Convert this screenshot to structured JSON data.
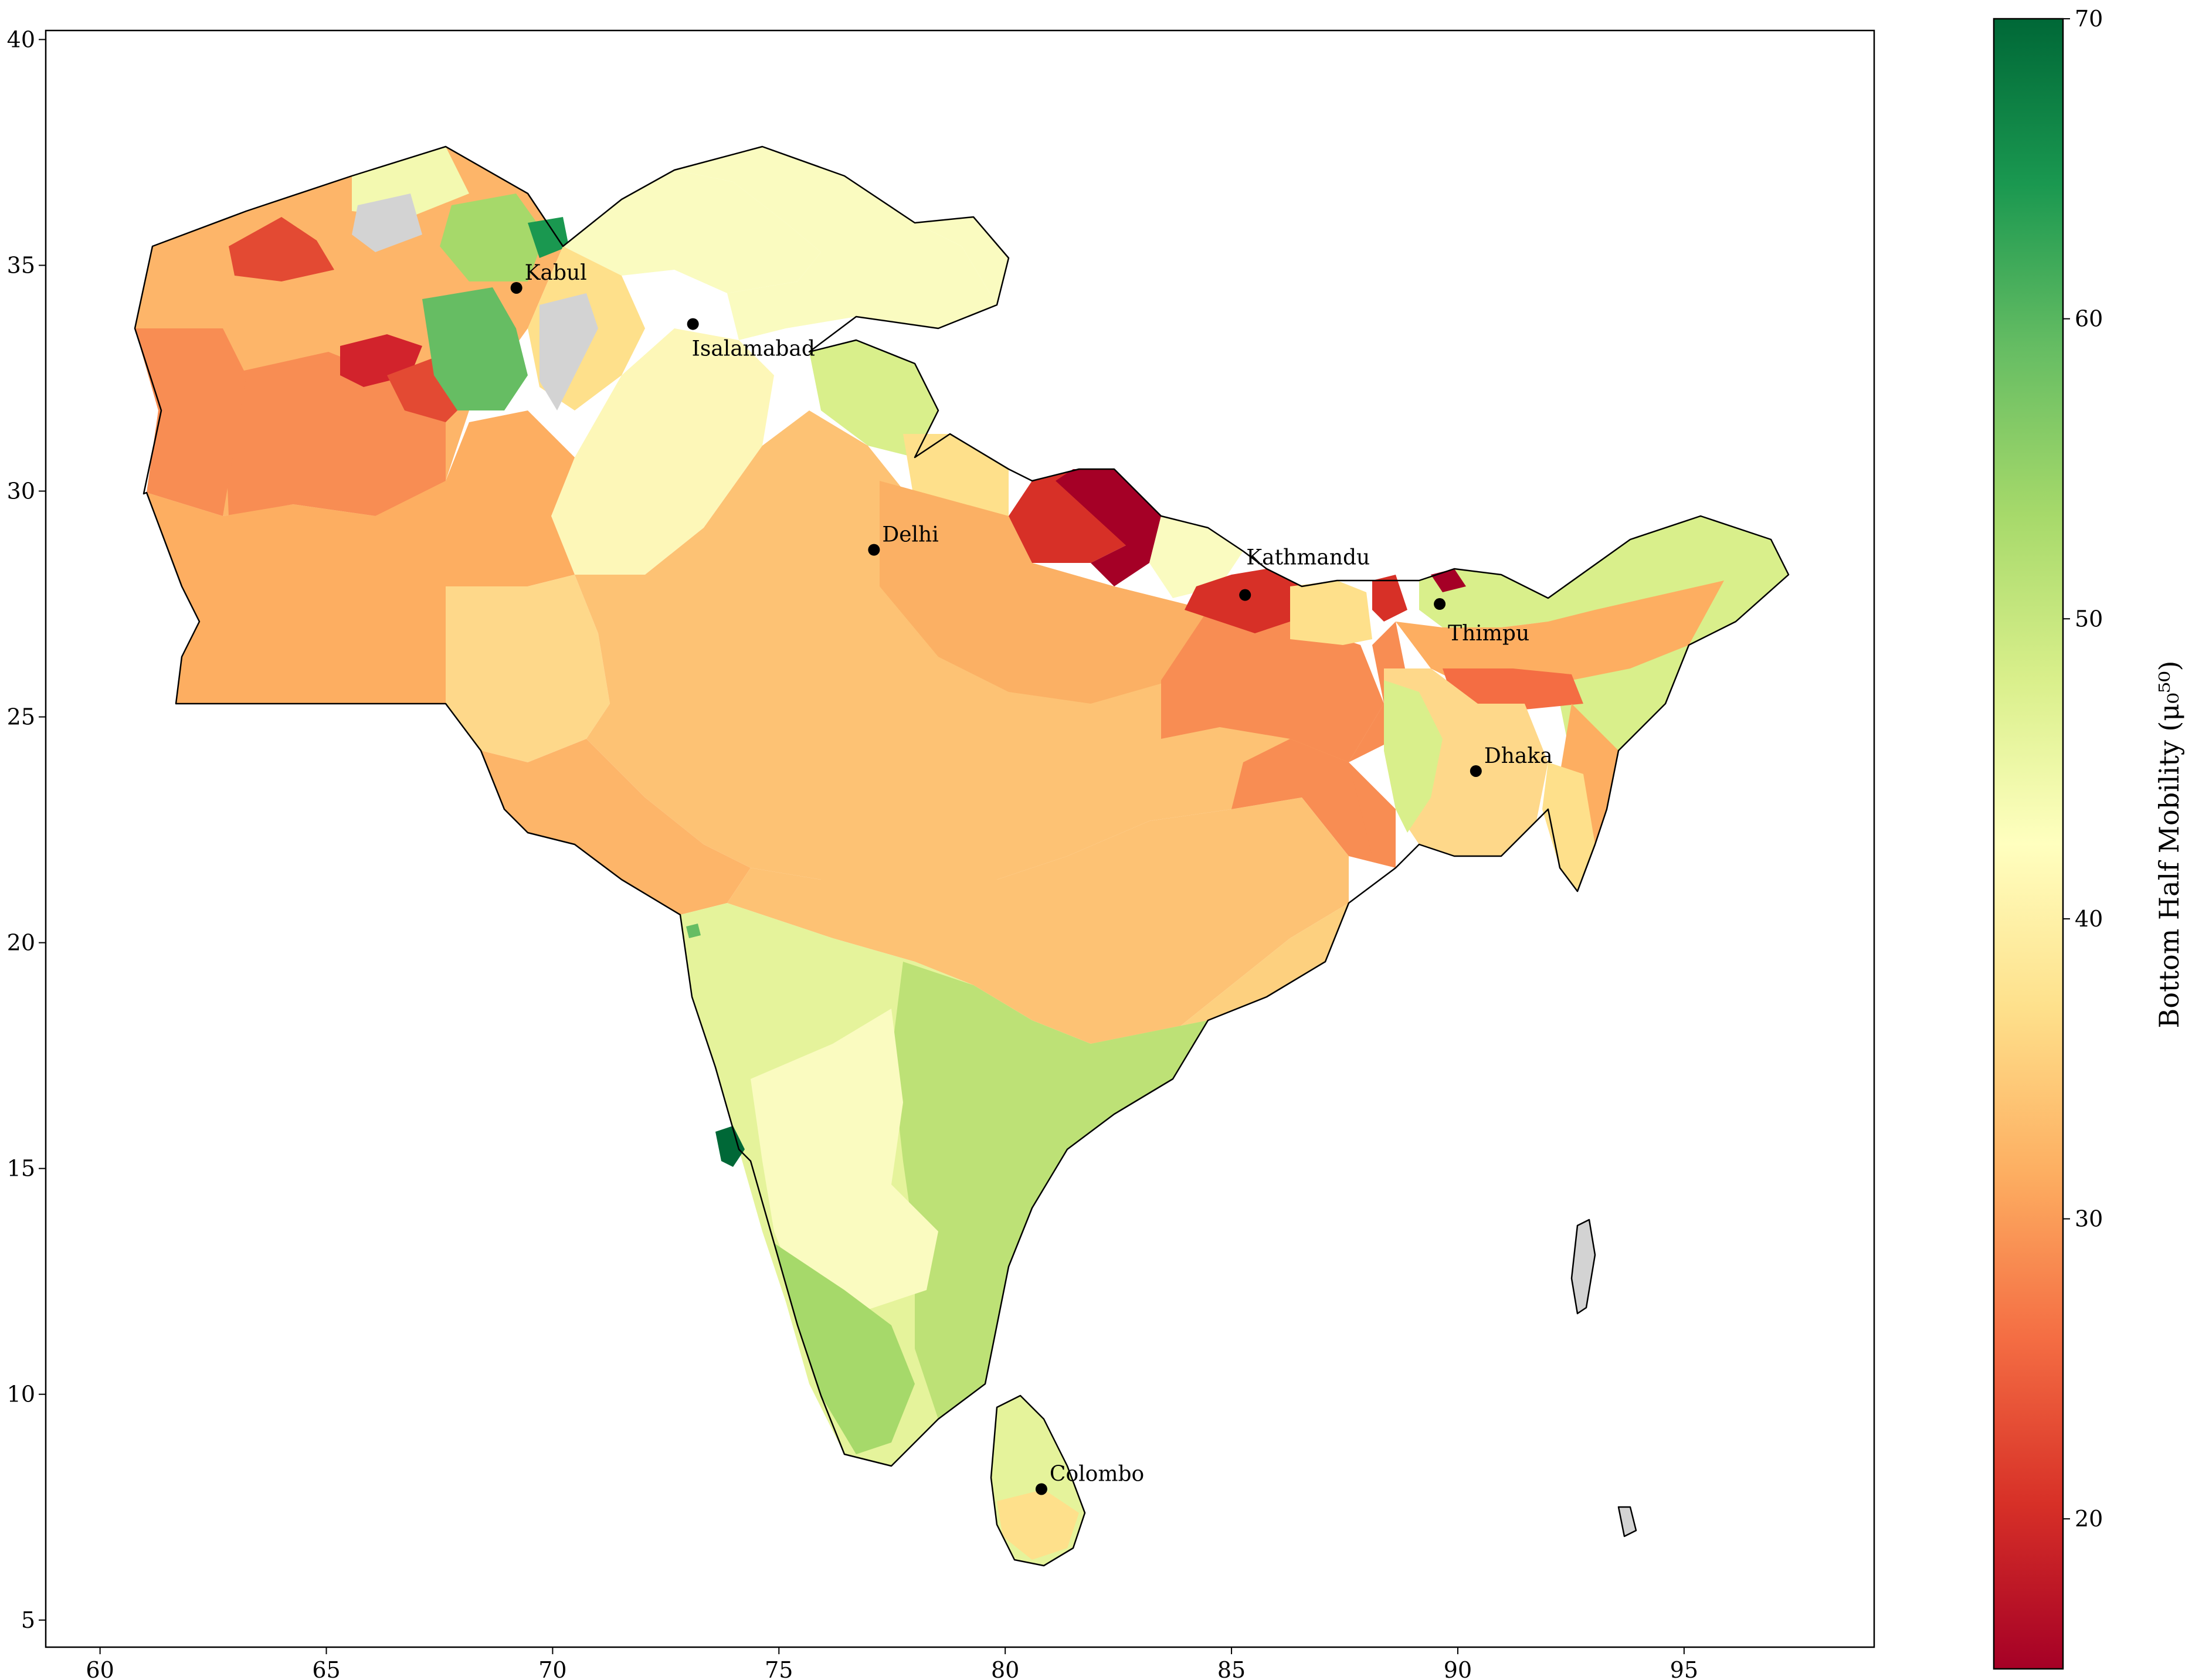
{
  "chart_data": {
    "type": "choropleth",
    "xlim": [
      58.8,
      99.2
    ],
    "ylim": [
      4.4,
      40.2
    ],
    "xticks": [
      60,
      65,
      70,
      75,
      80,
      85,
      90,
      95
    ],
    "yticks": [
      5,
      10,
      15,
      20,
      25,
      30,
      35,
      40
    ],
    "xtick_labels": [
      "60",
      "65",
      "70",
      "75",
      "80",
      "85",
      "90",
      "95"
    ],
    "ytick_labels": [
      "5",
      "10",
      "15",
      "20",
      "25",
      "30",
      "35",
      "40"
    ],
    "grid": false,
    "colormap": "RdYlGn",
    "colorbar": {
      "label": "Bottom Half Mobility (μ₀⁵⁰)",
      "range": [
        15,
        70
      ],
      "ticks": [
        20,
        30,
        40,
        50,
        60,
        70
      ],
      "tick_labels": [
        "20",
        "30",
        "40",
        "50",
        "60",
        "70"
      ],
      "placement": "right"
    },
    "cities": [
      {
        "name": "Kabul",
        "lon": 69.2,
        "lat": 34.5
      },
      {
        "name": "Isalamabad",
        "lon": 73.1,
        "lat": 33.7
      },
      {
        "name": "Delhi",
        "lon": 77.1,
        "lat": 28.7
      },
      {
        "name": "Kathmandu",
        "lon": 85.3,
        "lat": 27.7
      },
      {
        "name": "Thimpu",
        "lon": 89.6,
        "lat": 27.5
      },
      {
        "name": "Dhaka",
        "lon": 90.4,
        "lat": 23.8
      },
      {
        "name": "Colombo",
        "lon": 80.8,
        "lat": 7.9
      }
    ],
    "no_data_color": "#d3d3d3"
  }
}
